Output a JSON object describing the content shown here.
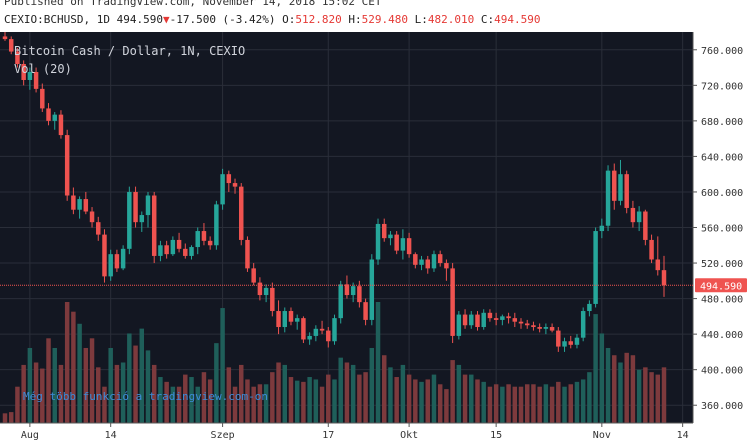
{
  "header": {
    "published": "Published on TradingView.com, November 14, 2018 15:02 CET",
    "symbol": "CEXIO:BCHUSD, 1D",
    "last": "494.590",
    "change_arrow": "▼",
    "change": "-17.500 (-3.42%)",
    "o_label": "O:",
    "o_value": "512.820",
    "h_label": "H:",
    "h_value": "529.480",
    "l_label": "L:",
    "l_value": "482.010",
    "c_label": "C:",
    "c_value": "494.590"
  },
  "chart_data": {
    "type": "candlestick",
    "title": "Bitcoin Cash / Dollar, 1N, CEXIO",
    "volume_label": "Vol (20)",
    "watermark": "Még több funkció a tradingview.com-on",
    "price_label": "494.590",
    "ylim": [
      340,
      780
    ],
    "y_ticks": [
      "760.000",
      "720.000",
      "680.000",
      "640.000",
      "600.000",
      "560.000",
      "520.000",
      "480.000",
      "440.000",
      "400.000",
      "360.000"
    ],
    "y_tick_values": [
      760,
      720,
      680,
      640,
      600,
      560,
      520,
      480,
      440,
      400,
      360
    ],
    "x_ticks": [
      {
        "label": "Aug",
        "index": 4
      },
      {
        "label": "14",
        "index": 17
      },
      {
        "label": "Szep",
        "index": 35
      },
      {
        "label": "17",
        "index": 52
      },
      {
        "label": "Okt",
        "index": 65
      },
      {
        "label": "15",
        "index": 79
      },
      {
        "label": "Nov",
        "index": 96
      },
      {
        "label": "14",
        "index": 109
      }
    ],
    "colors": {
      "up": "#26a69a",
      "down": "#ef5350",
      "bg": "#131722",
      "grid": "#2a2e39",
      "price_line": "#ef5350"
    },
    "ohlc": [
      [
        775,
        780,
        770,
        772
      ],
      [
        772,
        775,
        755,
        758
      ],
      [
        758,
        762,
        740,
        744
      ],
      [
        744,
        748,
        720,
        726
      ],
      [
        726,
        740,
        715,
        735
      ],
      [
        735,
        740,
        712,
        716
      ],
      [
        716,
        722,
        690,
        694
      ],
      [
        694,
        700,
        675,
        680
      ],
      [
        680,
        690,
        670,
        687
      ],
      [
        687,
        692,
        660,
        664
      ],
      [
        664,
        670,
        590,
        596
      ],
      [
        596,
        605,
        575,
        580
      ],
      [
        580,
        595,
        570,
        592
      ],
      [
        592,
        600,
        575,
        578
      ],
      [
        578,
        583,
        560,
        566
      ],
      [
        566,
        572,
        545,
        552
      ],
      [
        552,
        558,
        498,
        505
      ],
      [
        505,
        535,
        500,
        530
      ],
      [
        530,
        535,
        510,
        514
      ],
      [
        514,
        540,
        512,
        536
      ],
      [
        536,
        606,
        530,
        600
      ],
      [
        600,
        606,
        560,
        566
      ],
      [
        566,
        578,
        555,
        574
      ],
      [
        574,
        600,
        560,
        596
      ],
      [
        596,
        600,
        520,
        528
      ],
      [
        528,
        545,
        522,
        540
      ],
      [
        540,
        545,
        525,
        530
      ],
      [
        530,
        550,
        528,
        546
      ],
      [
        546,
        554,
        532,
        536
      ],
      [
        536,
        542,
        525,
        528
      ],
      [
        528,
        540,
        524,
        538
      ],
      [
        538,
        560,
        530,
        556
      ],
      [
        556,
        565,
        540,
        545
      ],
      [
        545,
        550,
        535,
        540
      ],
      [
        540,
        590,
        535,
        586
      ],
      [
        586,
        626,
        580,
        620
      ],
      [
        620,
        624,
        600,
        610
      ],
      [
        610,
        615,
        598,
        606
      ],
      [
        606,
        610,
        540,
        546
      ],
      [
        546,
        550,
        510,
        514
      ],
      [
        514,
        520,
        495,
        498
      ],
      [
        498,
        504,
        478,
        484
      ],
      [
        484,
        496,
        476,
        492
      ],
      [
        492,
        498,
        460,
        466
      ],
      [
        466,
        478,
        440,
        448
      ],
      [
        448,
        470,
        442,
        466
      ],
      [
        466,
        470,
        450,
        454
      ],
      [
        454,
        462,
        445,
        458
      ],
      [
        458,
        460,
        430,
        434
      ],
      [
        434,
        442,
        428,
        438
      ],
      [
        438,
        450,
        432,
        446
      ],
      [
        446,
        455,
        440,
        444
      ],
      [
        444,
        448,
        425,
        432
      ],
      [
        432,
        462,
        428,
        458
      ],
      [
        458,
        500,
        452,
        496
      ],
      [
        496,
        506,
        480,
        484
      ],
      [
        484,
        498,
        476,
        494
      ],
      [
        494,
        500,
        470,
        476
      ],
      [
        476,
        480,
        450,
        456
      ],
      [
        456,
        530,
        450,
        524
      ],
      [
        524,
        570,
        518,
        564
      ],
      [
        564,
        570,
        544,
        548
      ],
      [
        548,
        556,
        540,
        552
      ],
      [
        552,
        556,
        530,
        534
      ],
      [
        534,
        558,
        524,
        548
      ],
      [
        548,
        554,
        526,
        530
      ],
      [
        530,
        532,
        514,
        518
      ],
      [
        518,
        528,
        512,
        524
      ],
      [
        524,
        528,
        508,
        514
      ],
      [
        514,
        534,
        510,
        530
      ],
      [
        530,
        534,
        516,
        520
      ],
      [
        520,
        524,
        500,
        514
      ],
      [
        514,
        520,
        430,
        438
      ],
      [
        438,
        466,
        434,
        462
      ],
      [
        462,
        468,
        446,
        450
      ],
      [
        450,
        466,
        446,
        462
      ],
      [
        462,
        466,
        444,
        448
      ],
      [
        448,
        468,
        445,
        464
      ],
      [
        464,
        468,
        454,
        458
      ],
      [
        458,
        464,
        450,
        456
      ],
      [
        456,
        462,
        450,
        460
      ],
      [
        460,
        464,
        452,
        458
      ],
      [
        458,
        464,
        448,
        454
      ],
      [
        454,
        458,
        446,
        452
      ],
      [
        452,
        456,
        446,
        450
      ],
      [
        450,
        454,
        444,
        448
      ],
      [
        448,
        452,
        442,
        446
      ],
      [
        446,
        452,
        440,
        448
      ],
      [
        448,
        452,
        442,
        444
      ],
      [
        444,
        448,
        420,
        426
      ],
      [
        426,
        436,
        420,
        432
      ],
      [
        432,
        438,
        424,
        428
      ],
      [
        428,
        440,
        424,
        436
      ],
      [
        436,
        470,
        432,
        466
      ],
      [
        466,
        478,
        460,
        474
      ],
      [
        474,
        560,
        470,
        556
      ],
      [
        556,
        570,
        548,
        562
      ],
      [
        562,
        630,
        556,
        624
      ],
      [
        624,
        632,
        580,
        590
      ],
      [
        590,
        636,
        585,
        620
      ],
      [
        620,
        624,
        576,
        582
      ],
      [
        582,
        590,
        560,
        566
      ],
      [
        566,
        584,
        556,
        578
      ],
      [
        578,
        580,
        540,
        546
      ],
      [
        546,
        552,
        520,
        524
      ],
      [
        524,
        550,
        506,
        512
      ],
      [
        512,
        528,
        482,
        495
      ]
    ],
    "volume": [
      8,
      9,
      30,
      48,
      62,
      50,
      45,
      70,
      62,
      48,
      100,
      92,
      82,
      62,
      70,
      46,
      30,
      62,
      48,
      50,
      74,
      64,
      78,
      60,
      48,
      38,
      34,
      30,
      30,
      40,
      38,
      30,
      42,
      36,
      66,
      95,
      46,
      30,
      48,
      36,
      30,
      32,
      32,
      42,
      50,
      48,
      38,
      35,
      34,
      38,
      36,
      30,
      40,
      36,
      54,
      50,
      48,
      40,
      42,
      62,
      100,
      56,
      46,
      38,
      48,
      40,
      36,
      34,
      36,
      40,
      32,
      28,
      52,
      48,
      40,
      40,
      36,
      34,
      30,
      32,
      30,
      32,
      30,
      30,
      32,
      32,
      30,
      32,
      30,
      34,
      30,
      32,
      34,
      36,
      42,
      90,
      74,
      62,
      56,
      50,
      58,
      56,
      44,
      46,
      42,
      40,
      46
    ],
    "volume_max": 100
  }
}
